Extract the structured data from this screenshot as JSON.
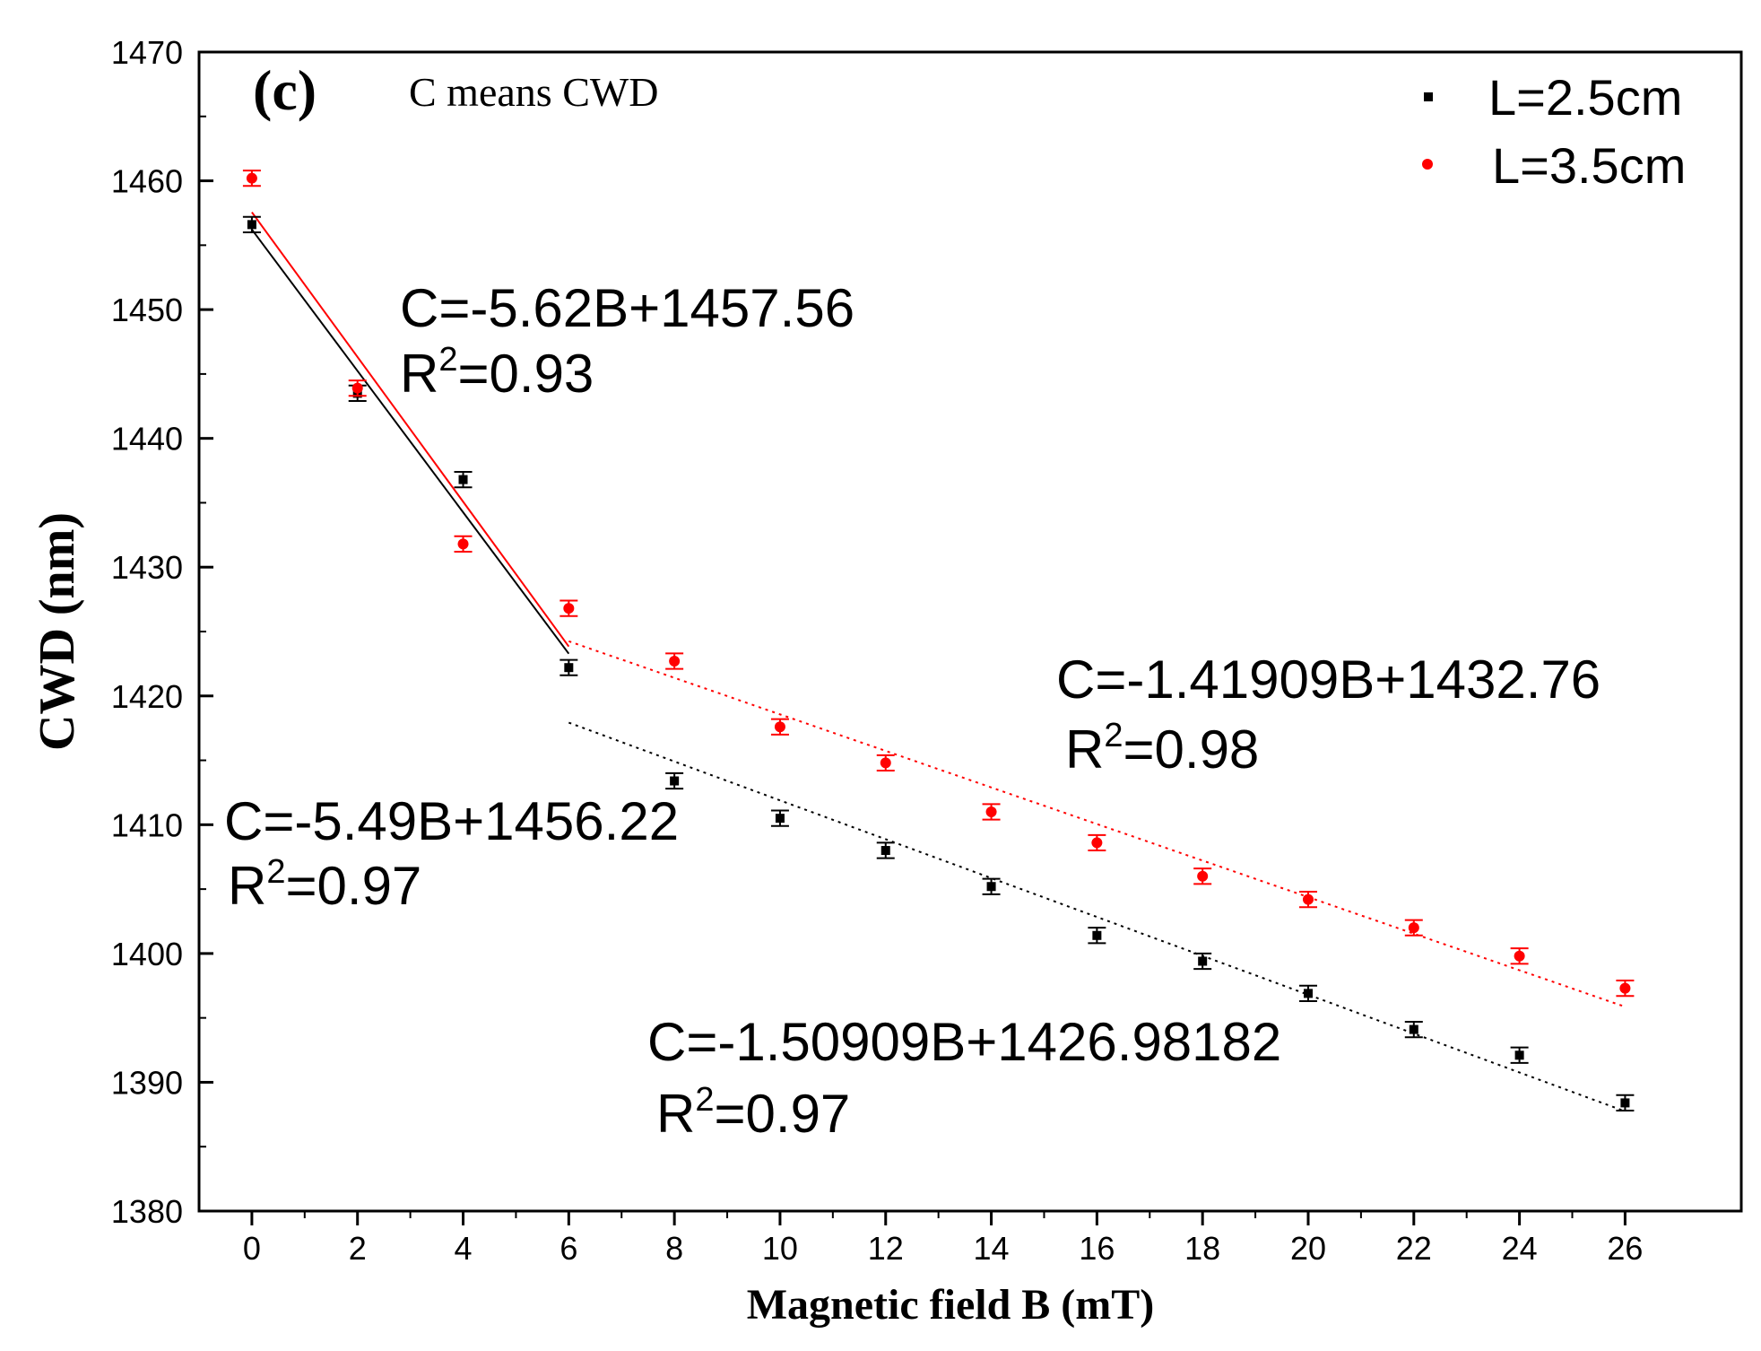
{
  "chart_data": {
    "type": "scatter",
    "panel_label": "(c)",
    "note": "C means CWD",
    "xlabel": "Magnetic field B (mT)",
    "ylabel": "CWD (nm)",
    "xlim": [
      -1,
      28.2
    ],
    "ylim": [
      1380,
      1470
    ],
    "xticks": [
      0,
      2,
      4,
      6,
      8,
      10,
      12,
      14,
      16,
      18,
      20,
      22,
      24,
      26
    ],
    "yticks": [
      1380,
      1390,
      1400,
      1410,
      1420,
      1430,
      1440,
      1450,
      1460,
      1470
    ],
    "colors": {
      "L25": "#000000",
      "L35": "#ff0000"
    },
    "series": [
      {
        "name": "L=2.5cm",
        "color": "#000000",
        "marker": "square",
        "x": [
          0,
          2,
          4,
          6,
          8,
          10,
          12,
          14,
          16,
          18,
          20,
          22,
          24,
          26
        ],
        "y": [
          1456.6,
          1443.5,
          1436.8,
          1422.2,
          1413.4,
          1410.5,
          1408.0,
          1405.2,
          1401.4,
          1399.4,
          1396.9,
          1394.1,
          1392.1,
          1388.4
        ],
        "error": 0.6
      },
      {
        "name": "L=3.5cm",
        "color": "#ff0000",
        "marker": "circle",
        "x": [
          0,
          2,
          4,
          6,
          8,
          10,
          12,
          14,
          16,
          18,
          20,
          22,
          24,
          26
        ],
        "y": [
          1460.2,
          1443.9,
          1431.8,
          1426.8,
          1422.7,
          1417.6,
          1414.8,
          1411.0,
          1408.6,
          1406.0,
          1404.2,
          1402.0,
          1399.8,
          1397.3
        ],
        "error": 0.6
      }
    ],
    "fits": [
      {
        "series": "L=2.5cm",
        "range": [
          0,
          6
        ],
        "style": "solid",
        "slope": -5.49,
        "intercept": 1456.22,
        "equation": "C=-5.49B+1456.22",
        "r2_label": "R",
        "r2_value": "=0.97"
      },
      {
        "series": "L=3.5cm",
        "range": [
          0,
          6
        ],
        "style": "solid",
        "slope": -5.62,
        "intercept": 1457.56,
        "equation": "C=-5.62B+1457.56",
        "r2_label": "R",
        "r2_value": "=0.93"
      },
      {
        "series": "L=2.5cm",
        "range": [
          6,
          26
        ],
        "style": "dotted",
        "slope": -1.50909,
        "intercept": 1426.98182,
        "equation": "C=-1.50909B+1426.98182",
        "r2_label": "R",
        "r2_value": "=0.97"
      },
      {
        "series": "L=3.5cm",
        "range": [
          6,
          26
        ],
        "style": "dotted",
        "slope": -1.41909,
        "intercept": 1432.76,
        "equation": "C=-1.41909B+1432.76",
        "r2_label": "R",
        "r2_value": "=0.98"
      }
    ],
    "r2_superscript": "2",
    "legend": {
      "position": "top-right",
      "entries": [
        "L=2.5cm",
        "L=3.5cm"
      ]
    }
  }
}
